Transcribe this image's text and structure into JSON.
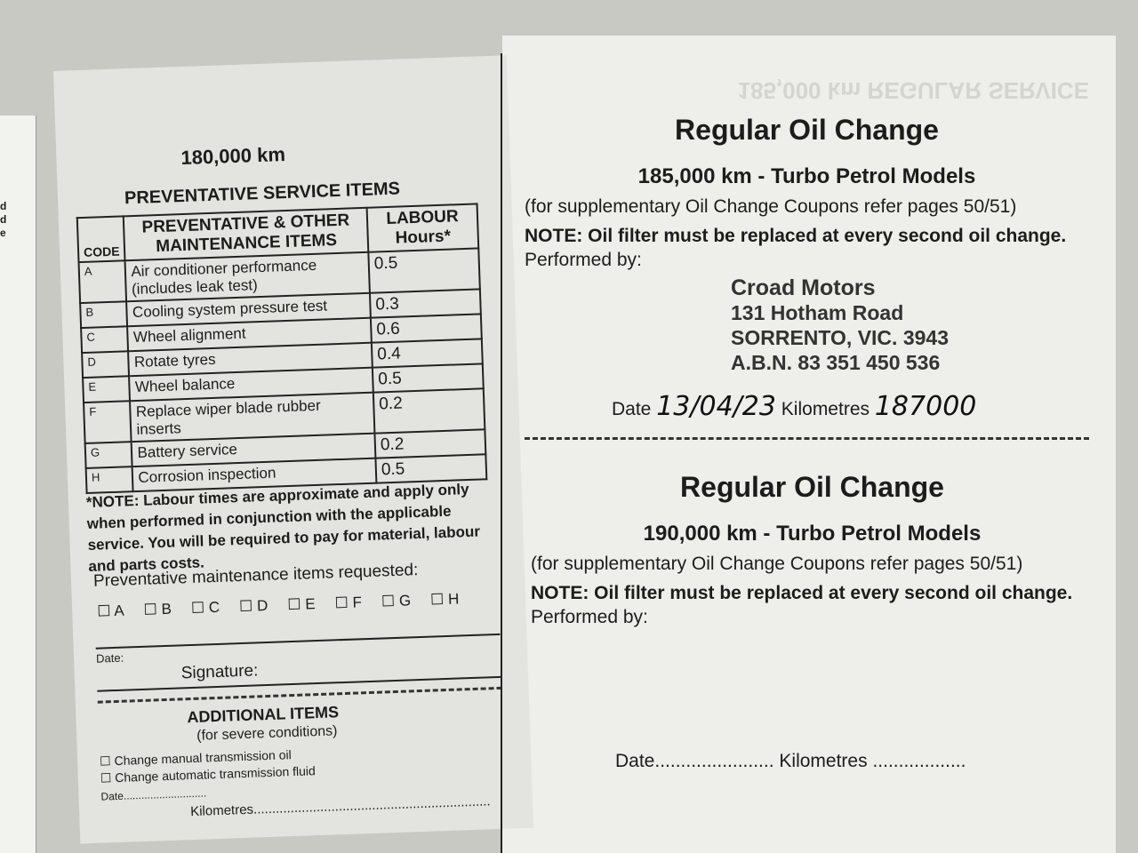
{
  "edge_letters": [
    "d",
    "d",
    "e"
  ],
  "left_page": {
    "heading": "180,000 km",
    "section_title": "PREVENTATIVE SERVICE ITEMS",
    "table": {
      "headers": [
        "CODE",
        "PREVENTATIVE & OTHER MAINTENANCE ITEMS",
        "LABOUR Hours*"
      ],
      "rows": [
        {
          "code": "A",
          "item": "Air conditioner performance (includes leak test)",
          "hours": "0.5"
        },
        {
          "code": "B",
          "item": "Cooling system pressure test",
          "hours": "0.3"
        },
        {
          "code": "C",
          "item": "Wheel alignment",
          "hours": "0.6"
        },
        {
          "code": "D",
          "item": "Rotate tyres",
          "hours": "0.4"
        },
        {
          "code": "E",
          "item": "Wheel balance",
          "hours": "0.5"
        },
        {
          "code": "F",
          "item": "Replace wiper blade rubber inserts",
          "hours": "0.2"
        },
        {
          "code": "G",
          "item": "Battery service",
          "hours": "0.2"
        },
        {
          "code": "H",
          "item": "Corrosion inspection",
          "hours": "0.5"
        }
      ]
    },
    "note": "*NOTE: Labour times are approximate and apply only when performed in conjunction with the applicable service. You will be required to pay for material, labour and parts costs.",
    "requested_label": "Preventative maintenance items requested:",
    "checkboxes": [
      "A",
      "B",
      "C",
      "D",
      "E",
      "F",
      "G",
      "H"
    ],
    "date_label": "Date:",
    "signature_label": "Signature:",
    "additional_title": "ADDITIONAL ITEMS",
    "additional_subtitle": "(for severe conditions)",
    "additional_items": [
      "Change manual transmission oil",
      "Change automatic transmission fluid"
    ],
    "date_dots": "Date............................",
    "km_dots": "Kilometres................................................................"
  },
  "right_page": {
    "ghost_heading": "185,000 km REGULAR SERVICE",
    "coupons": [
      {
        "title": "Regular Oil Change",
        "subtitle": "185,000 km - Turbo Petrol Models",
        "ref": "(for supplementary Oil Change Coupons refer pages 50/51)",
        "note": "NOTE: Oil filter must be replaced at every second oil change.",
        "performed_by": "Performed by:",
        "date_label": "Date",
        "date_value": "13/04/23",
        "km_label": "Kilometres",
        "km_value": "187000",
        "stamp": [
          "Croad Motors",
          "131 Hotham Road",
          "SORRENTO, VIC. 3943",
          "A.B.N. 83 351 450 536"
        ]
      },
      {
        "title": "Regular Oil Change",
        "subtitle": "190,000 km - Turbo Petrol Models",
        "ref": "(for supplementary Oil Change Coupons refer pages 50/51)",
        "note": "NOTE: Oil filter must be replaced at every second oil change.",
        "performed_by": "Performed by:",
        "date_label": "Date",
        "date_value": ".......................",
        "km_label": "Kilometres",
        "km_value": ".................."
      }
    ]
  }
}
